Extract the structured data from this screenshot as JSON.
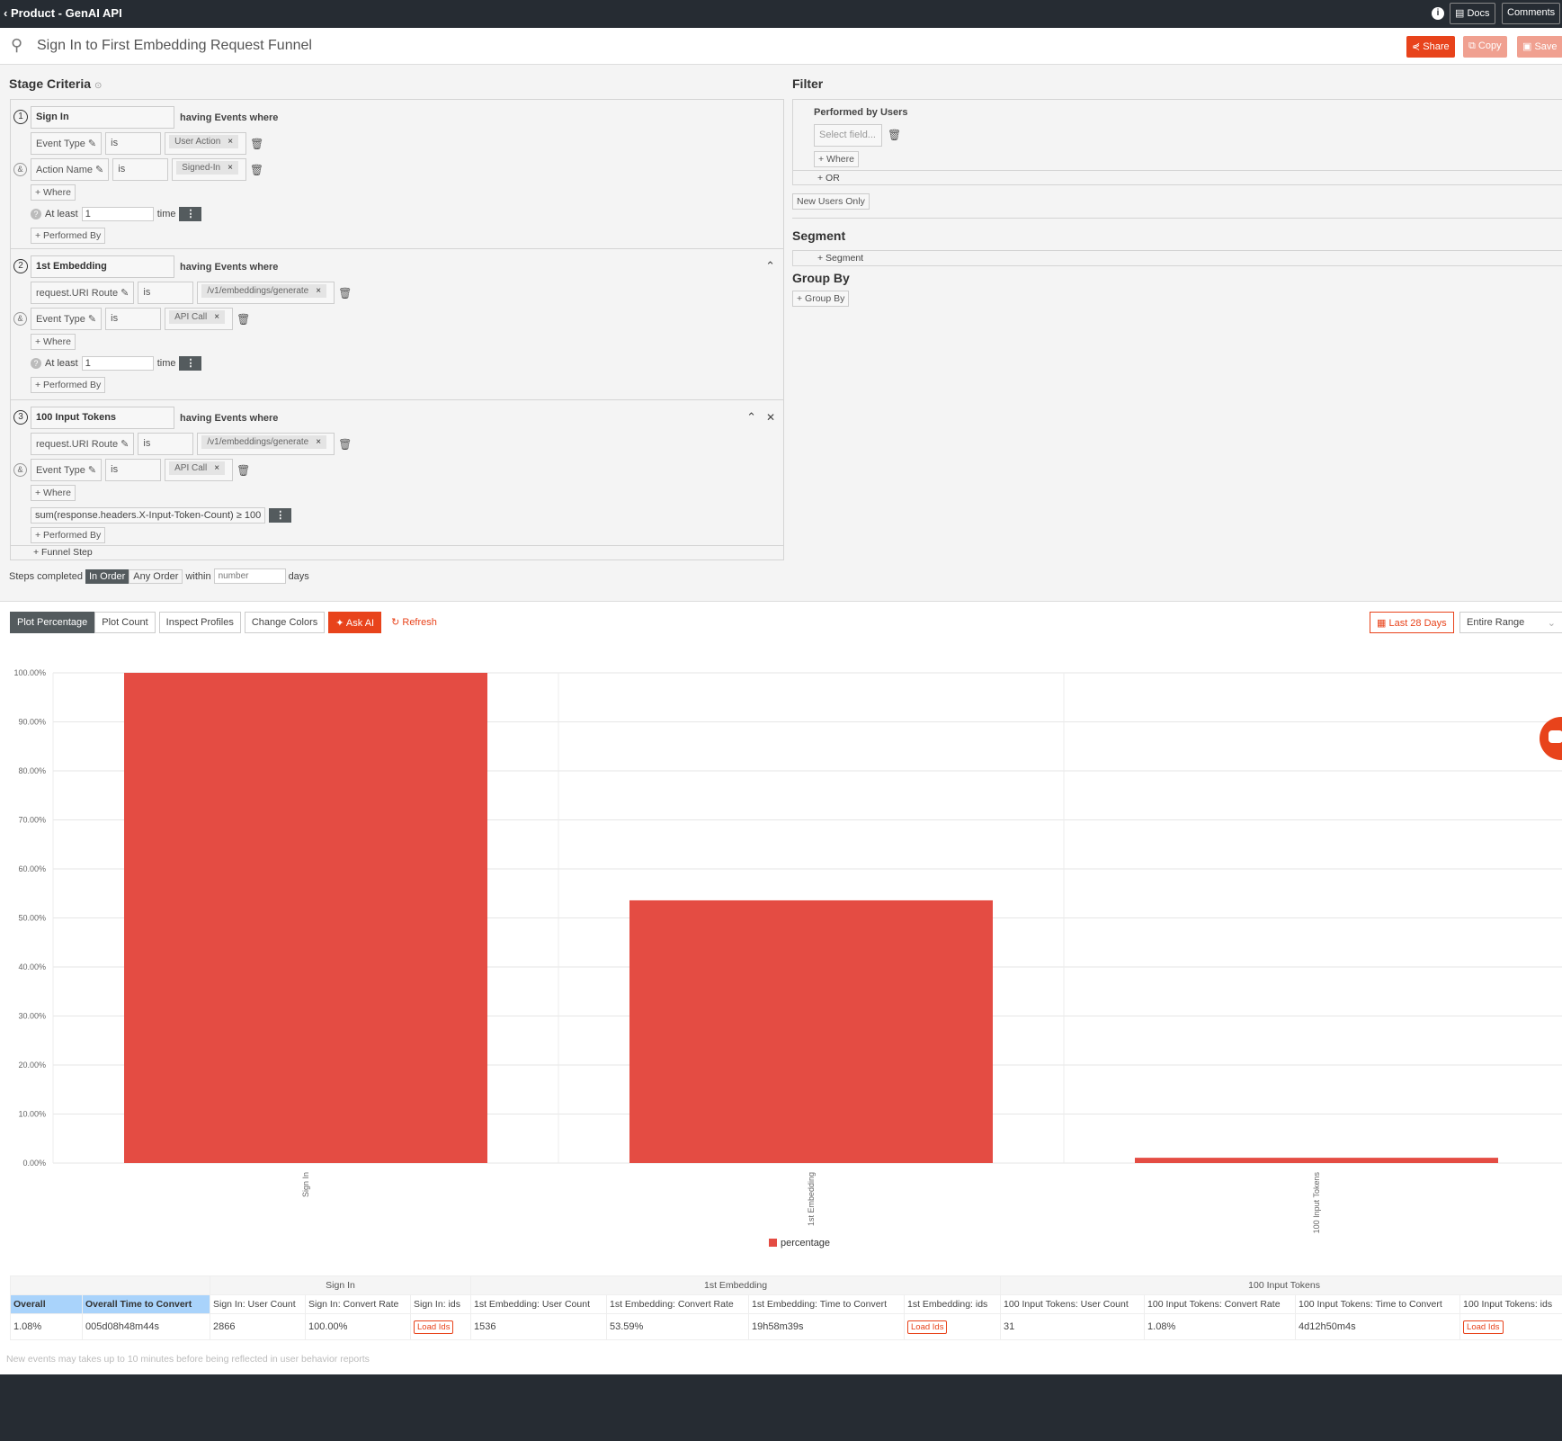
{
  "app": {
    "back_label": "Product - GenAI API",
    "docs": "Docs",
    "comments": "Comments",
    "info_icon": "info-icon"
  },
  "header": {
    "title": "Sign In to First Embedding Request Funnel",
    "share": "Share",
    "copy": "Copy",
    "save": "Save"
  },
  "colors": {
    "accent": "#e8431b",
    "bar": "#e44c43",
    "dark": "#262c33"
  },
  "stage_criteria": {
    "heading": "Stage Criteria",
    "having": "having Events where",
    "where_btn": "+ Where",
    "performed_btn": "+ Performed By",
    "at_least": "At least",
    "time": "time",
    "stages": [
      {
        "num": "1",
        "name": "Sign In",
        "conditions": [
          {
            "field": "Event Type",
            "op": "is",
            "value": "User Action"
          },
          {
            "field": "Action Name",
            "op": "is",
            "value": "Signed-In"
          }
        ],
        "at_least": "1",
        "collapse": false,
        "close": false
      },
      {
        "num": "2",
        "name": "1st Embedding",
        "conditions": [
          {
            "field": "request.URI Route",
            "op": "is",
            "value": "/v1/embeddings/generate"
          },
          {
            "field": "Event Type",
            "op": "is",
            "value": "API Call"
          }
        ],
        "at_least": "1",
        "collapse": true,
        "close": false
      },
      {
        "num": "3",
        "name": "100 Input Tokens",
        "conditions": [
          {
            "field": "request.URI Route",
            "op": "is",
            "value": "/v1/embeddings/generate"
          },
          {
            "field": "Event Type",
            "op": "is",
            "value": "API Call"
          }
        ],
        "aggregate": "sum(response.headers.X-Input-Token-Count) ≥ 100",
        "collapse": true,
        "close": true
      }
    ],
    "funnel_step": "+ Funnel Step",
    "steps_completed": "Steps completed",
    "in_order": "In Order",
    "any_order": "Any Order",
    "within": "within",
    "number_placeholder": "number",
    "days": "days"
  },
  "filter": {
    "heading": "Filter",
    "performed_by": "Performed by Users",
    "select_placeholder": "Select field...",
    "where": "+ Where",
    "or": "+ OR",
    "new_users": "New Users Only"
  },
  "segment": {
    "heading": "Segment",
    "add": "+ Segment"
  },
  "group_by": {
    "heading": "Group By",
    "add": "+ Group By"
  },
  "toolbar": {
    "plot_percentage": "Plot Percentage",
    "plot_count": "Plot Count",
    "inspect": "Inspect Profiles",
    "change_colors": "Change Colors",
    "ask_ai": "Ask AI",
    "refresh": "Refresh",
    "date": "Last 28 Days",
    "range": "Entire Range"
  },
  "chart_data": {
    "type": "bar",
    "categories": [
      "Sign In",
      "1st Embedding",
      "100 Input Tokens"
    ],
    "series": [
      {
        "name": "percentage",
        "values": [
          100,
          53.59,
          1.08
        ]
      }
    ],
    "ylim": [
      0,
      100
    ],
    "yticks": [
      "0.00%",
      "10.00%",
      "20.00%",
      "30.00%",
      "40.00%",
      "50.00%",
      "60.00%",
      "70.00%",
      "80.00%",
      "90.00%",
      "100.00%"
    ],
    "grid": true,
    "legend": "bottom"
  },
  "table": {
    "groups": [
      "",
      "Sign In",
      "1st Embedding",
      "100 Input Tokens"
    ],
    "headers": [
      "Overall",
      "Overall Time to Convert",
      "Sign In: User Count",
      "Sign In: Convert Rate",
      "Sign In: ids",
      "1st Embedding: User Count",
      "1st Embedding: Convert Rate",
      "1st Embedding: Time to Convert",
      "1st Embedding: ids",
      "100 Input Tokens: User Count",
      "100 Input Tokens: Convert Rate",
      "100 Input Tokens: Time to Convert",
      "100 Input Tokens: ids"
    ],
    "row": [
      "1.08%",
      "005d08h48m44s",
      "2866",
      "100.00%",
      "Load Ids",
      "1536",
      "53.59%",
      "19h58m39s",
      "Load Ids",
      "31",
      "1.08%",
      "4d12h50m4s",
      "Load Ids"
    ]
  },
  "footer_note": "New events may takes up to 10 minutes before being reflected in user behavior reports"
}
